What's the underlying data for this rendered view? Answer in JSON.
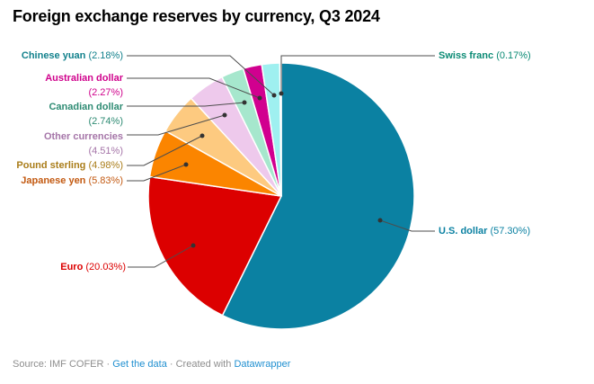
{
  "title": "Foreign exchange reserves by currency, Q3 2024",
  "footer": {
    "source_text": "Source: IMF COFER",
    "separator": "·",
    "get_data_link": "Get the data",
    "created_with_text": "Created with",
    "datawrapper_link": "Datawrapper",
    "text_color": "#8d8d8d",
    "link_color": "#1f8fd0"
  },
  "chart_data": {
    "type": "pie",
    "title": "Foreign exchange reserves by currency, Q3 2024",
    "start_angle_deg": 0,
    "direction": "clockwise",
    "legend_position": "callout-labels",
    "slice_stroke_color": "#ffffff",
    "leader_line_color": "#4d4d4d",
    "leader_dot_color": "#333333",
    "slices": [
      {
        "label": "U.S. dollar",
        "value": 57.3,
        "percent_text": "(57.30%)",
        "color": "#0b81a2",
        "label_color": "#0b81a2"
      },
      {
        "label": "Euro",
        "value": 20.03,
        "percent_text": "(20.03%)",
        "color": "#dc0000",
        "label_color": "#dc0000"
      },
      {
        "label": "Japanese yen",
        "value": 5.83,
        "percent_text": "(5.83%)",
        "color": "#fb8500",
        "label_color": "#c35a12"
      },
      {
        "label": "Pound sterling",
        "value": 4.98,
        "percent_text": "(4.98%)",
        "color": "#fdca80",
        "label_color": "#aa7d1a"
      },
      {
        "label": "Other currencies",
        "value": 4.51,
        "percent_text": "(4.51%)",
        "color": "#eec9ec",
        "label_color": "#a575a8"
      },
      {
        "label": "Canadian dollar",
        "value": 2.74,
        "percent_text": "(2.74%)",
        "color": "#a6e7cd",
        "label_color": "#2e8b73"
      },
      {
        "label": "Australian dollar",
        "value": 2.27,
        "percent_text": "(2.27%)",
        "color": "#d1008f",
        "label_color": "#d0028c"
      },
      {
        "label": "Chinese yuan",
        "value": 2.18,
        "percent_text": "(2.18%)",
        "color": "#9ff0f0",
        "label_color": "#12818c"
      },
      {
        "label": "Swiss franc",
        "value": 0.17,
        "percent_text": "(0.17%)",
        "color": "#2f6e64",
        "label_color": "#0a8a74"
      }
    ]
  }
}
